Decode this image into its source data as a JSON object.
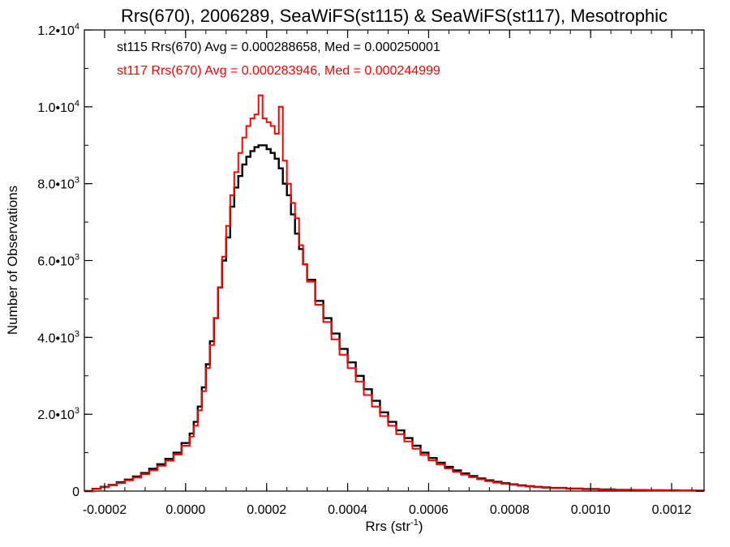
{
  "chart_data": {
    "type": "histogram-step",
    "title": "Rrs(670), 2006289, SeaWiFS(st115) & SeaWiFS(st117), Mesotrophic",
    "xlabel": "Rrs (str",
    "xlabel_sup": "-1",
    "xlabel_close": ")",
    "ylabel": "Number of Observations",
    "xlim": [
      -0.00025,
      0.00128
    ],
    "ylim": [
      0,
      12000
    ],
    "xticks": [
      {
        "value": -0.0002,
        "label": "-0.0002"
      },
      {
        "value": 0.0,
        "label": "0.0000"
      },
      {
        "value": 0.0002,
        "label": "0.0002"
      },
      {
        "value": 0.0004,
        "label": "0.0004"
      },
      {
        "value": 0.0006,
        "label": "0.0006"
      },
      {
        "value": 0.0008,
        "label": "0.0008"
      },
      {
        "value": 0.001,
        "label": "0.0010"
      },
      {
        "value": 0.0012,
        "label": "0.0012"
      }
    ],
    "yticks": [
      {
        "value": 0,
        "label": "0",
        "exp": ""
      },
      {
        "value": 2000,
        "label": "2.0•10",
        "exp": "3"
      },
      {
        "value": 4000,
        "label": "4.0•10",
        "exp": "3"
      },
      {
        "value": 6000,
        "label": "6.0•10",
        "exp": "3"
      },
      {
        "value": 8000,
        "label": "8.0•10",
        "exp": "3"
      },
      {
        "value": 10000,
        "label": "1.0•10",
        "exp": "4"
      },
      {
        "value": 12000,
        "label": "1.2•10",
        "exp": "4"
      }
    ],
    "annotations": [
      {
        "text": "st115 Rrs(670) Avg = 0.000288658, Med = 0.000250001",
        "color": "#000000"
      },
      {
        "text": "st117 Rrs(670) Avg = 0.000283946, Med = 0.000244999",
        "color": "#ff0000"
      }
    ],
    "series": [
      {
        "color": "#000000",
        "points": [
          [
            -0.00025,
            0
          ],
          [
            -0.00023,
            60
          ],
          [
            -0.00021,
            110
          ],
          [
            -0.00019,
            160
          ],
          [
            -0.00017,
            230
          ],
          [
            -0.00015,
            300
          ],
          [
            -0.00013,
            380
          ],
          [
            -0.00011,
            470
          ],
          [
            -9e-05,
            580
          ],
          [
            -7e-05,
            700
          ],
          [
            -5e-05,
            840
          ],
          [
            -3e-05,
            1000
          ],
          [
            -1e-05,
            1250
          ],
          [
            1e-05,
            1500
          ],
          [
            2e-05,
            1800
          ],
          [
            3e-05,
            2200
          ],
          [
            4e-05,
            2700
          ],
          [
            5e-05,
            3300
          ],
          [
            6e-05,
            3900
          ],
          [
            7e-05,
            4500
          ],
          [
            8e-05,
            5300
          ],
          [
            9e-05,
            6000
          ],
          [
            0.0001,
            6600
          ],
          [
            0.00011,
            7400
          ],
          [
            0.00012,
            7900
          ],
          [
            0.00013,
            8200
          ],
          [
            0.00014,
            8500
          ],
          [
            0.00015,
            8700
          ],
          [
            0.00016,
            8850
          ],
          [
            0.00017,
            8950
          ],
          [
            0.00018,
            9000
          ],
          [
            0.00019,
            9000
          ],
          [
            0.0002,
            8900
          ],
          [
            0.00021,
            8800
          ],
          [
            0.00022,
            8650
          ],
          [
            0.00023,
            8400
          ],
          [
            0.00024,
            8000
          ],
          [
            0.00025,
            7700
          ],
          [
            0.00026,
            7200
          ],
          [
            0.00027,
            6700
          ],
          [
            0.00028,
            6300
          ],
          [
            0.00029,
            5900
          ],
          [
            0.0003,
            5500
          ],
          [
            0.00032,
            4950
          ],
          [
            0.00034,
            4500
          ],
          [
            0.00036,
            4100
          ],
          [
            0.00038,
            3700
          ],
          [
            0.0004,
            3350
          ],
          [
            0.00042,
            3000
          ],
          [
            0.00044,
            2650
          ],
          [
            0.00046,
            2350
          ],
          [
            0.00048,
            2050
          ],
          [
            0.0005,
            1800
          ],
          [
            0.00052,
            1580
          ],
          [
            0.00054,
            1380
          ],
          [
            0.00056,
            1180
          ],
          [
            0.00058,
            1000
          ],
          [
            0.0006,
            860
          ],
          [
            0.00062,
            740
          ],
          [
            0.00064,
            630
          ],
          [
            0.00066,
            540
          ],
          [
            0.00068,
            460
          ],
          [
            0.0007,
            390
          ],
          [
            0.00072,
            330
          ],
          [
            0.00074,
            280
          ],
          [
            0.00076,
            240
          ],
          [
            0.00078,
            205
          ],
          [
            0.0008,
            175
          ],
          [
            0.00082,
            150
          ],
          [
            0.00084,
            128
          ],
          [
            0.00086,
            110
          ],
          [
            0.00088,
            95
          ],
          [
            0.0009,
            82
          ],
          [
            0.00094,
            65
          ],
          [
            0.00098,
            52
          ],
          [
            0.00102,
            42
          ],
          [
            0.00106,
            34
          ],
          [
            0.0011,
            28
          ],
          [
            0.00114,
            22
          ],
          [
            0.00118,
            18
          ],
          [
            0.00122,
            14
          ],
          [
            0.00126,
            10
          ],
          [
            0.00128,
            8
          ]
        ]
      },
      {
        "color": "#ff0000",
        "points": [
          [
            -0.00025,
            0
          ],
          [
            -0.00023,
            55
          ],
          [
            -0.00021,
            100
          ],
          [
            -0.00019,
            150
          ],
          [
            -0.00017,
            210
          ],
          [
            -0.00015,
            280
          ],
          [
            -0.00013,
            350
          ],
          [
            -0.00011,
            440
          ],
          [
            -9e-05,
            540
          ],
          [
            -7e-05,
            660
          ],
          [
            -5e-05,
            790
          ],
          [
            -3e-05,
            950
          ],
          [
            -1e-05,
            1180
          ],
          [
            1e-05,
            1420
          ],
          [
            2e-05,
            1700
          ],
          [
            3e-05,
            2100
          ],
          [
            4e-05,
            2600
          ],
          [
            5e-05,
            3200
          ],
          [
            6e-05,
            3800
          ],
          [
            7e-05,
            4500
          ],
          [
            8e-05,
            5300
          ],
          [
            9e-05,
            6100
          ],
          [
            0.0001,
            6900
          ],
          [
            0.00011,
            7700
          ],
          [
            0.00012,
            8300
          ],
          [
            0.00013,
            8800
          ],
          [
            0.00014,
            9200
          ],
          [
            0.00015,
            9500
          ],
          [
            0.00016,
            9700
          ],
          [
            0.00017,
            9800
          ],
          [
            0.00018,
            10300
          ],
          [
            0.00019,
            9700
          ],
          [
            0.0002,
            9600
          ],
          [
            0.00021,
            9500
          ],
          [
            0.00022,
            9300
          ],
          [
            0.00023,
            10000
          ],
          [
            0.00024,
            8600
          ],
          [
            0.00025,
            8000
          ],
          [
            0.00026,
            7500
          ],
          [
            0.00027,
            7100
          ],
          [
            0.00028,
            6400
          ],
          [
            0.00029,
            5900
          ],
          [
            0.0003,
            5450
          ],
          [
            0.00032,
            4850
          ],
          [
            0.00034,
            4400
          ],
          [
            0.00036,
            3950
          ],
          [
            0.00038,
            3550
          ],
          [
            0.0004,
            3200
          ],
          [
            0.00042,
            2850
          ],
          [
            0.00044,
            2500
          ],
          [
            0.00046,
            2200
          ],
          [
            0.00048,
            1950
          ],
          [
            0.0005,
            1700
          ],
          [
            0.00052,
            1480
          ],
          [
            0.00054,
            1290
          ],
          [
            0.00056,
            1100
          ],
          [
            0.00058,
            940
          ],
          [
            0.0006,
            800
          ],
          [
            0.00062,
            690
          ],
          [
            0.00064,
            590
          ],
          [
            0.00066,
            500
          ],
          [
            0.00068,
            425
          ],
          [
            0.0007,
            360
          ],
          [
            0.00072,
            305
          ],
          [
            0.00074,
            260
          ],
          [
            0.00076,
            220
          ],
          [
            0.00078,
            190
          ],
          [
            0.0008,
            162
          ],
          [
            0.00082,
            138
          ],
          [
            0.00084,
            118
          ],
          [
            0.00086,
            102
          ],
          [
            0.00088,
            88
          ],
          [
            0.0009,
            76
          ],
          [
            0.00094,
            60
          ],
          [
            0.00098,
            48
          ],
          [
            0.00102,
            39
          ],
          [
            0.00106,
            31
          ],
          [
            0.0011,
            25
          ],
          [
            0.00114,
            20
          ],
          [
            0.00118,
            16
          ],
          [
            0.00122,
            12
          ],
          [
            0.00126,
            9
          ],
          [
            0.00128,
            7
          ]
        ]
      }
    ]
  }
}
